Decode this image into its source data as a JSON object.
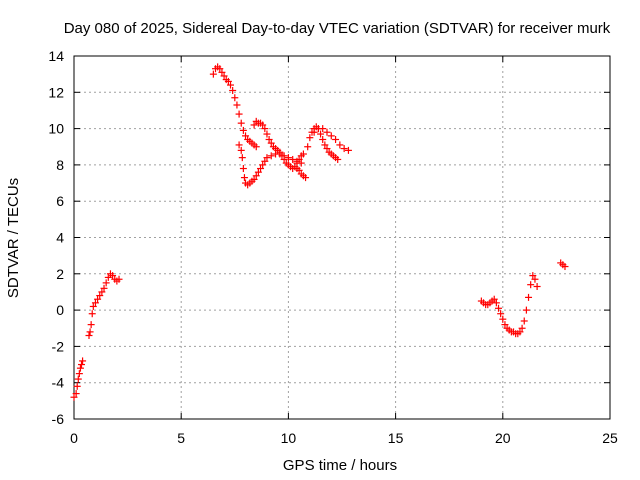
{
  "chart_data": {
    "type": "scatter",
    "title": "Day 080 of 2025, Sidereal Day-to-day VTEC variation (SDTVAR) for receiver murk",
    "xlabel": "GPS time / hours",
    "ylabel": "SDTVAR / TECUs",
    "xlim": [
      0,
      25
    ],
    "ylim": [
      -6,
      14
    ],
    "xticks": [
      0,
      5,
      10,
      15,
      20,
      25
    ],
    "yticks": [
      -6,
      -4,
      -2,
      0,
      2,
      4,
      6,
      8,
      10,
      12,
      14
    ],
    "grid": true,
    "marker": "plus",
    "color": "#ff0000",
    "segments": [
      {
        "x": [
          0.0,
          0.1,
          0.15,
          0.2,
          0.25,
          0.3,
          0.35,
          0.4
        ],
        "y": [
          -4.8,
          -4.6,
          -4.2,
          -3.8,
          -3.5,
          -3.2,
          -3.0,
          -2.8
        ]
      },
      {
        "x": [
          0.7,
          0.75,
          0.8,
          0.85,
          0.9,
          1.0,
          1.1,
          1.2,
          1.3,
          1.4,
          1.5,
          1.6,
          1.7,
          1.8,
          1.9,
          2.0,
          2.1
        ],
        "y": [
          -1.4,
          -1.2,
          -0.8,
          -0.2,
          0.2,
          0.4,
          0.6,
          0.8,
          1.0,
          1.2,
          1.5,
          1.8,
          2.0,
          1.9,
          1.7,
          1.6,
          1.7
        ]
      },
      {
        "x": [
          6.5,
          6.6,
          6.7,
          6.8,
          6.9,
          7.0,
          7.1,
          7.2,
          7.3,
          7.4,
          7.5,
          7.6,
          7.7,
          7.8,
          7.9,
          8.0,
          8.1,
          8.2,
          8.3,
          8.4,
          8.5
        ],
        "y": [
          13.0,
          13.3,
          13.4,
          13.3,
          13.1,
          12.9,
          12.7,
          12.6,
          12.4,
          12.1,
          11.7,
          11.3,
          10.8,
          10.3,
          9.9,
          9.6,
          9.4,
          9.3,
          9.2,
          9.1,
          9.0
        ]
      },
      {
        "x": [
          7.7,
          7.8,
          7.85,
          7.9,
          7.95,
          8.0,
          8.1,
          8.2,
          8.3,
          8.4,
          8.5,
          8.6,
          8.7,
          8.8,
          8.9,
          9.0,
          9.2,
          9.4,
          9.6,
          9.8,
          10.0,
          10.2,
          10.4,
          10.6
        ],
        "y": [
          9.1,
          8.8,
          8.4,
          7.8,
          7.3,
          7.0,
          6.9,
          7.0,
          7.1,
          7.2,
          7.4,
          7.6,
          7.8,
          8.0,
          8.2,
          8.4,
          8.5,
          8.6,
          8.6,
          8.5,
          8.4,
          8.3,
          8.2,
          8.1
        ]
      },
      {
        "x": [
          8.4,
          8.5,
          8.6,
          8.7,
          8.8,
          8.9,
          9.0,
          9.1,
          9.2,
          9.3,
          9.4,
          9.5,
          9.6,
          9.7,
          9.8,
          9.9,
          10.0,
          10.1,
          10.2,
          10.3,
          10.4,
          10.5,
          10.6,
          10.7
        ],
        "y": [
          10.2,
          10.4,
          10.3,
          10.3,
          10.2,
          10.0,
          9.7,
          9.4,
          9.2,
          9.0,
          8.9,
          8.8,
          8.7,
          8.5,
          8.3,
          8.1,
          8.0,
          7.9,
          7.8,
          7.9,
          8.1,
          8.3,
          8.5,
          8.6
        ]
      },
      {
        "x": [
          10.4,
          10.5,
          10.6,
          10.7,
          10.8
        ],
        "y": [
          7.8,
          7.7,
          7.5,
          7.4,
          7.3
        ]
      },
      {
        "x": [
          10.9,
          11.0,
          11.1,
          11.2,
          11.3,
          11.4,
          11.5,
          11.6,
          11.7,
          11.8,
          11.9,
          12.0,
          12.1,
          12.2,
          12.3
        ],
        "y": [
          9.0,
          9.5,
          9.8,
          10.0,
          10.1,
          10.0,
          9.7,
          9.4,
          9.1,
          8.9,
          8.7,
          8.6,
          8.5,
          8.4,
          8.3
        ]
      },
      {
        "x": [
          11.2,
          11.4,
          11.6,
          11.8,
          12.0,
          12.2,
          12.4,
          12.6,
          12.8
        ],
        "y": [
          9.8,
          10.0,
          10.0,
          9.8,
          9.6,
          9.4,
          9.1,
          8.9,
          8.8
        ]
      },
      {
        "x": [
          19.0,
          19.1,
          19.2,
          19.3,
          19.4,
          19.5,
          19.6,
          19.7,
          19.8,
          19.9,
          20.0,
          20.1,
          20.2,
          20.3,
          20.4,
          20.5,
          20.6,
          20.7,
          20.8,
          20.9,
          21.0,
          21.1,
          21.2,
          21.3,
          21.4,
          21.5,
          21.6
        ],
        "y": [
          0.5,
          0.4,
          0.3,
          0.3,
          0.4,
          0.5,
          0.6,
          0.4,
          0.1,
          -0.2,
          -0.5,
          -0.8,
          -1.0,
          -1.1,
          -1.2,
          -1.2,
          -1.3,
          -1.3,
          -1.2,
          -1.0,
          -0.6,
          0.0,
          0.7,
          1.4,
          1.9,
          1.7,
          1.3
        ]
      },
      {
        "x": [
          22.7,
          22.8,
          22.9
        ],
        "y": [
          2.6,
          2.5,
          2.4
        ]
      }
    ]
  }
}
